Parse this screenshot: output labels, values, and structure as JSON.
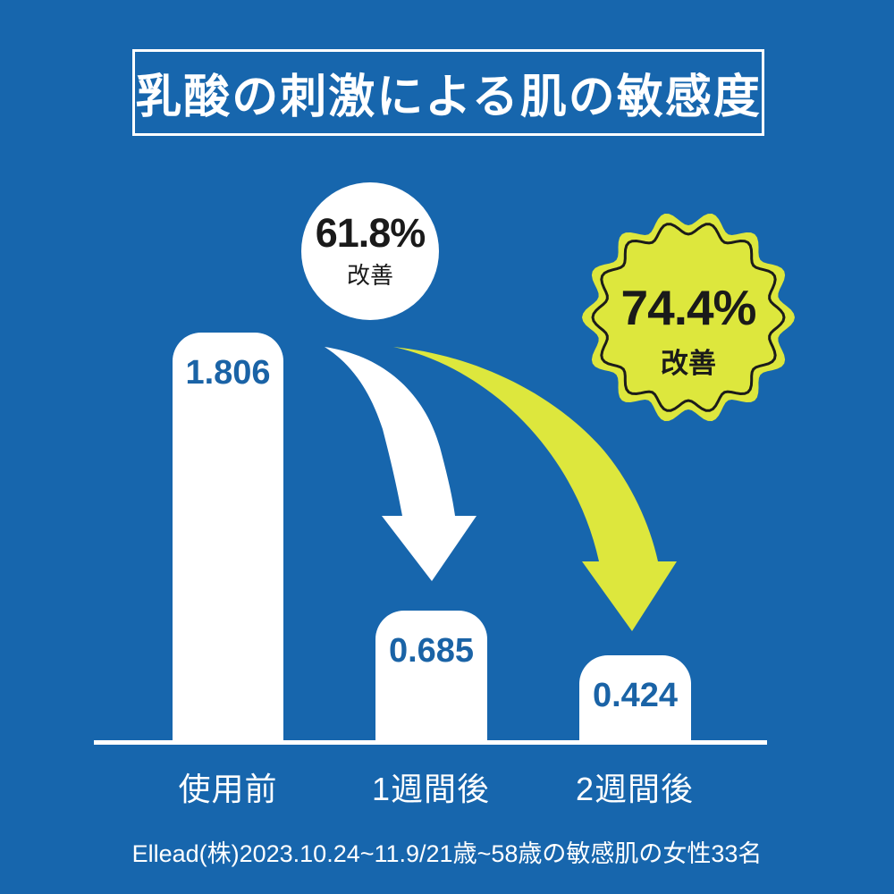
{
  "title": "乳酸の刺激による肌の敏感度",
  "colors": {
    "background": "#1766ad",
    "bar_fill": "#ffffff",
    "value_text": "#1a63a6",
    "accent_yellow": "#dde73d",
    "badge_outline": "#1c1c1a",
    "text_dark": "#1a1a1a",
    "text_light": "#ffffff"
  },
  "chart_data": {
    "type": "bar",
    "title": "乳酸の刺激による肌の敏感度",
    "categories": [
      "使用前",
      "1週間後",
      "2週間後"
    ],
    "values": [
      1.806,
      0.685,
      0.424
    ],
    "value_labels": [
      "1.806",
      "0.685",
      "0.424"
    ],
    "ylim": [
      0,
      2
    ],
    "grid": false,
    "legend": false,
    "annotations": [
      {
        "target": "1週間後",
        "percent": "61.8%",
        "label": "改善",
        "shape": "circle",
        "color": "#ffffff"
      },
      {
        "target": "2週間後",
        "percent": "74.4%",
        "label": "改善",
        "shape": "scalloped-seal",
        "color": "#dde73d"
      }
    ],
    "source_note": "Ellead(株)2023.10.24~11.9/21歳~58歳の敏感肌の女性33名"
  },
  "footnote": "Ellead(株)2023.10.24~11.9/21歳~58歳の敏感肌の女性33名"
}
